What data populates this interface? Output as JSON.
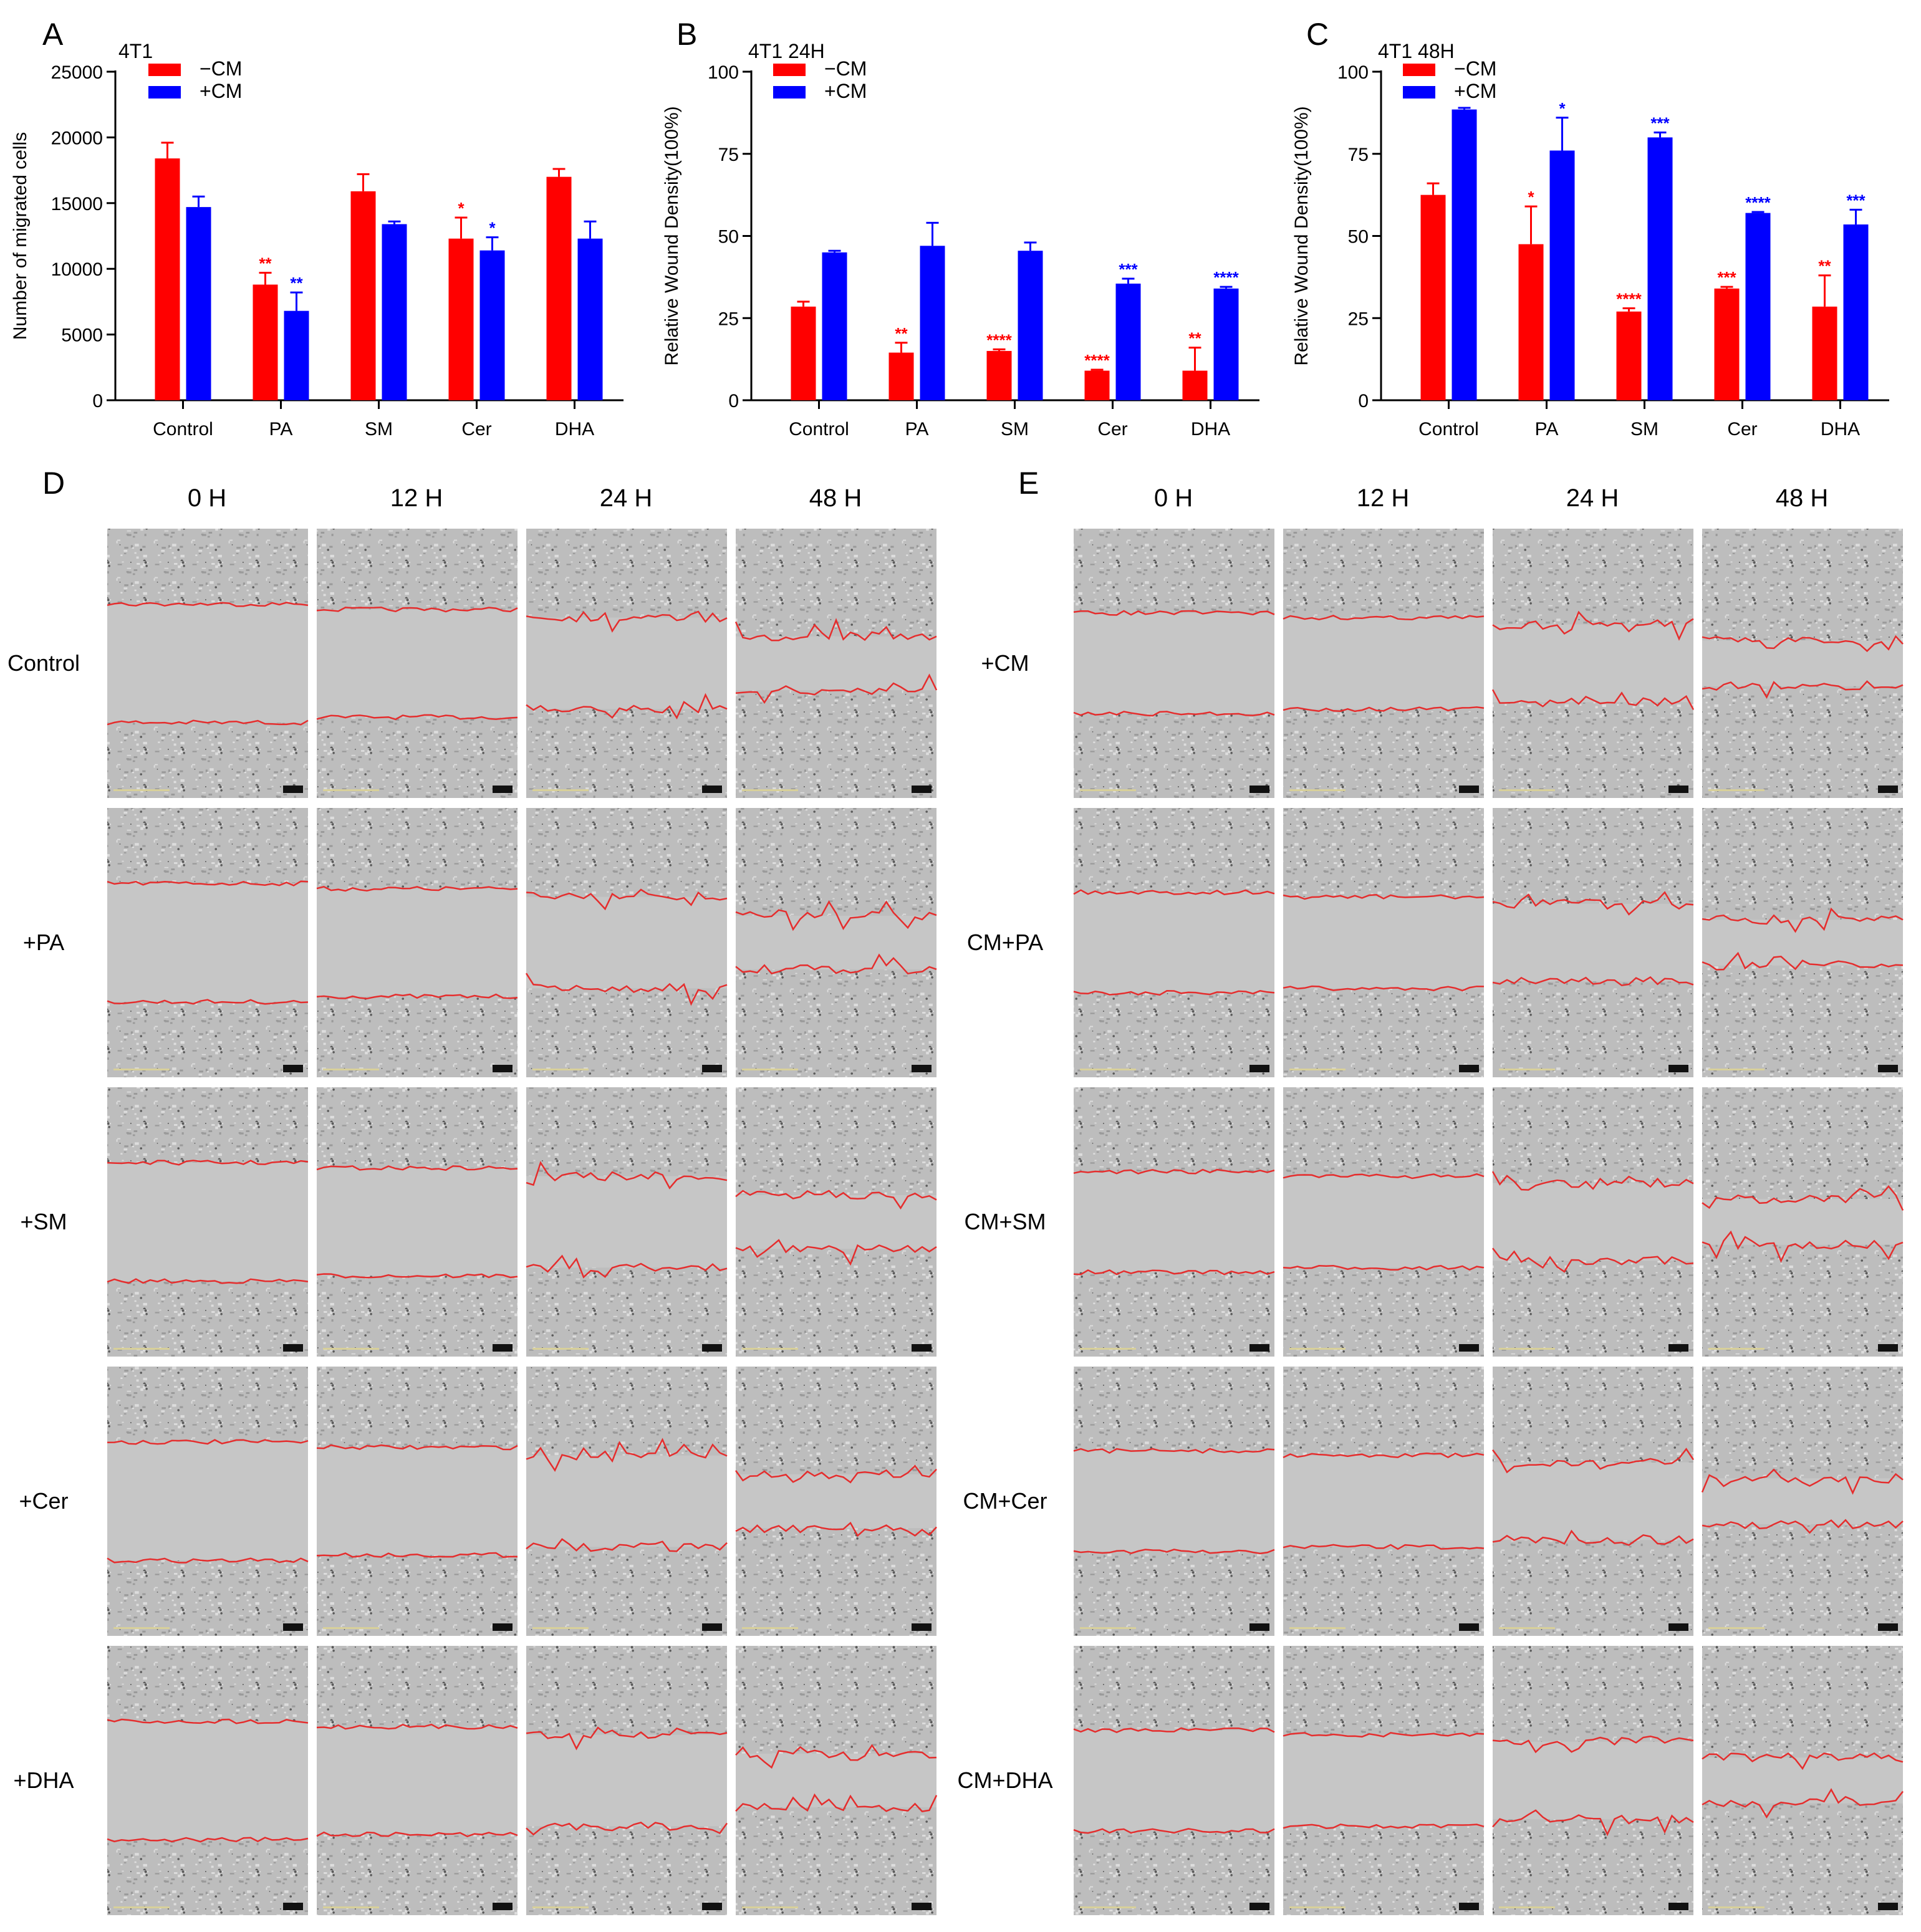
{
  "colors": {
    "minus_cm": "#ff0000",
    "plus_cm": "#0000ff",
    "wound_edge": "#e52d2d",
    "tile": "#c4c4c4",
    "tile_gap": "#b9b9b9"
  },
  "chart_data": [
    {
      "panel": "A",
      "type": "bar",
      "title": "4T1",
      "ylabel": "Number of migrated cells",
      "xlabel": "",
      "ylim": [
        0,
        25000
      ],
      "yticks": [
        "0",
        "5000",
        "10000",
        "15000",
        "20000",
        "25000"
      ],
      "categories": [
        "Control",
        "PA",
        "SM",
        "Cer",
        "DHA"
      ],
      "series": [
        {
          "name": "−CM",
          "color": "#ff0000",
          "values": [
            18400,
            8800,
            15900,
            12300,
            17000
          ],
          "errors": [
            1200,
            900,
            1300,
            1600,
            600
          ],
          "significance": [
            "",
            "**",
            "",
            "*",
            ""
          ]
        },
        {
          "name": "+CM",
          "color": "#0000ff",
          "values": [
            14700,
            6800,
            13400,
            11400,
            12300
          ],
          "errors": [
            800,
            1400,
            200,
            1000,
            1300
          ],
          "significance": [
            "",
            "**",
            "",
            "*",
            ""
          ]
        }
      ]
    },
    {
      "panel": "B",
      "type": "bar",
      "title": "4T1 24H",
      "ylabel": "Relative Wound Density(100%)",
      "xlabel": "",
      "ylim": [
        0,
        100
      ],
      "yticks": [
        "0",
        "25",
        "50",
        "75",
        "100"
      ],
      "categories": [
        "Control",
        "PA",
        "SM",
        "Cer",
        "DHA"
      ],
      "series": [
        {
          "name": "−CM",
          "color": "#ff0000",
          "values": [
            28.5,
            14.5,
            15.0,
            9.0,
            9.0
          ],
          "errors": [
            1.5,
            3.0,
            0.5,
            0.3,
            7.0
          ],
          "significance": [
            "",
            "**",
            "****",
            "****",
            "**"
          ]
        },
        {
          "name": "+CM",
          "color": "#0000ff",
          "values": [
            45.0,
            47.0,
            45.5,
            35.5,
            34.0
          ],
          "errors": [
            0.5,
            7.0,
            2.5,
            1.5,
            0.5
          ],
          "significance": [
            "",
            "",
            "",
            "***",
            "****"
          ]
        }
      ]
    },
    {
      "panel": "C",
      "type": "bar",
      "title": "4T1 48H",
      "ylabel": "Relative Wound Density(100%)",
      "xlabel": "",
      "ylim": [
        0,
        100
      ],
      "yticks": [
        "0",
        "25",
        "50",
        "75",
        "100"
      ],
      "categories": [
        "Control",
        "PA",
        "SM",
        "Cer",
        "DHA"
      ],
      "series": [
        {
          "name": "−CM",
          "color": "#ff0000",
          "values": [
            62.5,
            47.5,
            27.0,
            34.0,
            28.5
          ],
          "errors": [
            3.5,
            11.5,
            1.0,
            0.5,
            9.5
          ],
          "significance": [
            "",
            "*",
            "****",
            "***",
            "**"
          ]
        },
        {
          "name": "+CM",
          "color": "#0000ff",
          "values": [
            88.5,
            76.0,
            80.0,
            57.0,
            53.5
          ],
          "errors": [
            0.5,
            10.0,
            1.5,
            0.3,
            4.5
          ],
          "significance": [
            "",
            "*",
            "***",
            "****",
            "***"
          ]
        }
      ]
    }
  ],
  "image_grids": [
    {
      "panel": "D",
      "column_headers": [
        "0 H",
        "12 H",
        "24 H",
        "48 H"
      ],
      "row_labels": [
        "Control",
        "+PA",
        "+SM",
        "+Cer",
        "+DHA"
      ]
    },
    {
      "panel": "E",
      "column_headers": [
        "0 H",
        "12 H",
        "24 H",
        "48 H"
      ],
      "row_labels": [
        "+CM",
        "CM+PA",
        "CM+SM",
        "CM+Cer",
        "CM+DHA"
      ]
    }
  ]
}
